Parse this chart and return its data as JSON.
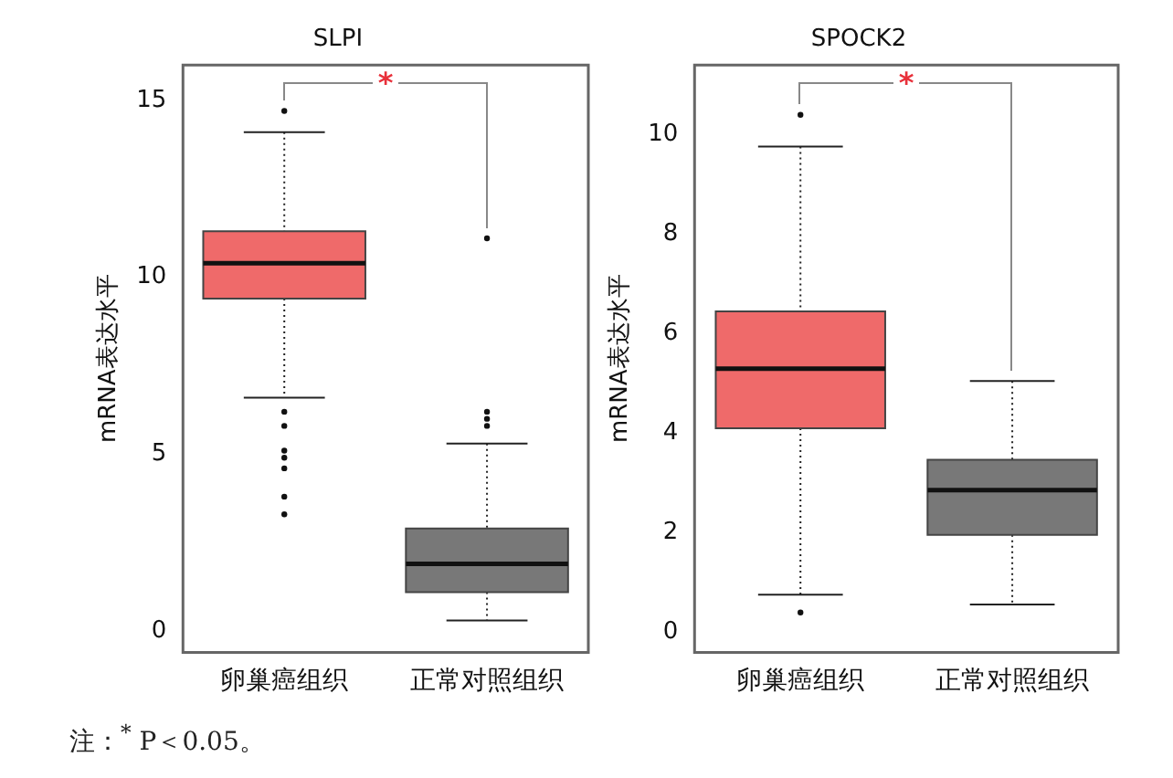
{
  "chart_data": [
    {
      "type": "box",
      "title": "SLPI",
      "ylabel": "mRNA表达水平",
      "categories": [
        "卵巢癌组织",
        "正常对照组织"
      ],
      "colors": [
        "#ef6a6a",
        "#787878"
      ],
      "boxes": [
        {
          "low": 6.6,
          "q1": 9.4,
          "median": 10.4,
          "q3": 11.3,
          "high": 14.1,
          "outliers": [
            14.7,
            6.2,
            5.8,
            5.1,
            4.9,
            4.6,
            3.8,
            3.3
          ]
        },
        {
          "low": 0.3,
          "q1": 1.1,
          "median": 1.9,
          "q3": 2.9,
          "high": 5.3,
          "outliers": [
            11.1,
            6.2,
            6.0,
            5.8
          ]
        }
      ],
      "ylim": [
        -0.6,
        16
      ],
      "yticks": [
        0,
        5,
        10,
        15
      ],
      "annotations": [
        "*",
        "注：$^{*}$ P＜0.05。"
      ]
    },
    {
      "type": "box",
      "title": "SPOCK2",
      "ylabel": "mRNA表达水平",
      "categories": [
        "卵巢癌组织",
        "正常对照组织"
      ],
      "colors": [
        "#ef6a6a",
        "#787878"
      ],
      "boxes": [
        {
          "low": 0.76,
          "q1": 4.1,
          "median": 5.3,
          "q3": 6.45,
          "high": 9.76,
          "outliers": [
            10.4,
            0.4
          ]
        },
        {
          "low": 0.56,
          "q1": 1.96,
          "median": 2.86,
          "q3": 3.47,
          "high": 5.05
        }
      ],
      "ylim": [
        -0.4,
        11.4
      ],
      "yticks": [
        0,
        2,
        4,
        6,
        8,
        10
      ],
      "annotations": [
        "*"
      ]
    }
  ]
}
